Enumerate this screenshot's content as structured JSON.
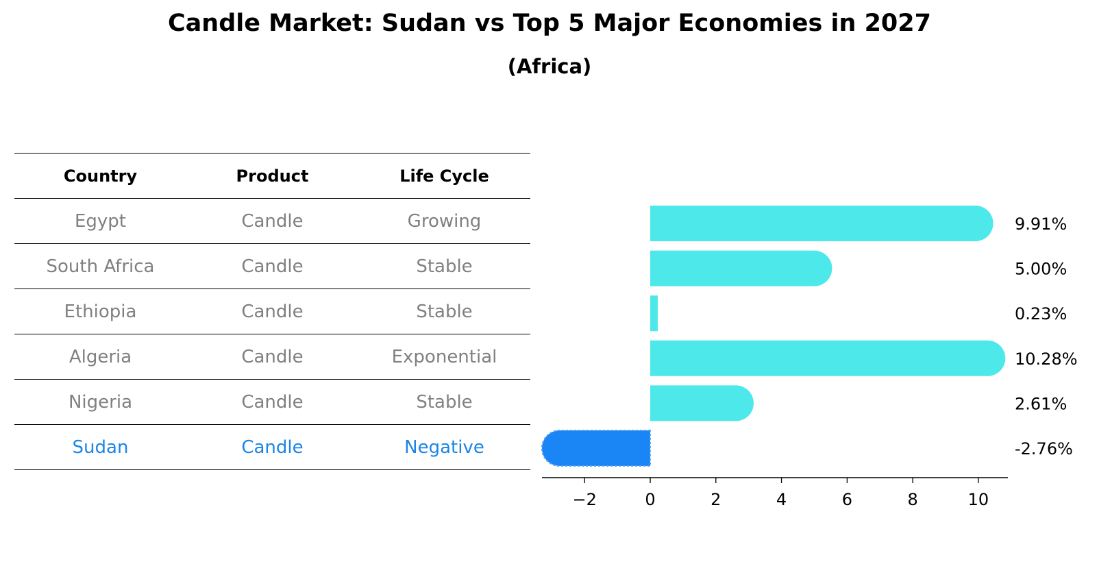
{
  "title": "Candle Market: Sudan vs Top 5 Major Economies in 2027",
  "subtitle": "(Africa)",
  "table": {
    "headers": [
      "Country",
      "Product",
      "Life Cycle"
    ],
    "rows": [
      [
        "Egypt",
        "Candle",
        "Growing"
      ],
      [
        "South Africa",
        "Candle",
        "Stable"
      ],
      [
        "Ethiopia",
        "Candle",
        "Stable"
      ],
      [
        "Algeria",
        "Candle",
        "Exponential"
      ],
      [
        "Nigeria",
        "Candle",
        "Stable"
      ],
      [
        "Sudan",
        "Candle",
        "Negative"
      ]
    ],
    "highlight_row": 5
  },
  "chart_data": {
    "type": "bar",
    "orientation": "horizontal",
    "categories": [
      "Egypt",
      "South Africa",
      "Ethiopia",
      "Algeria",
      "Nigeria",
      "Sudan"
    ],
    "values": [
      9.91,
      5.0,
      0.23,
      10.28,
      2.61,
      -2.76
    ],
    "value_labels": [
      "9.91%",
      "5.00%",
      "0.23%",
      "10.28%",
      "2.61%",
      "-2.76%"
    ],
    "xlim": [
      -3.3,
      10.9
    ],
    "xticks": [
      -2,
      0,
      2,
      4,
      6,
      8,
      10
    ],
    "xtick_labels": [
      "−2",
      "0",
      "2",
      "4",
      "6",
      "8",
      "10"
    ],
    "colors": {
      "positive": "#4de8ea",
      "negative": "#1a85f5"
    },
    "grid": false
  }
}
